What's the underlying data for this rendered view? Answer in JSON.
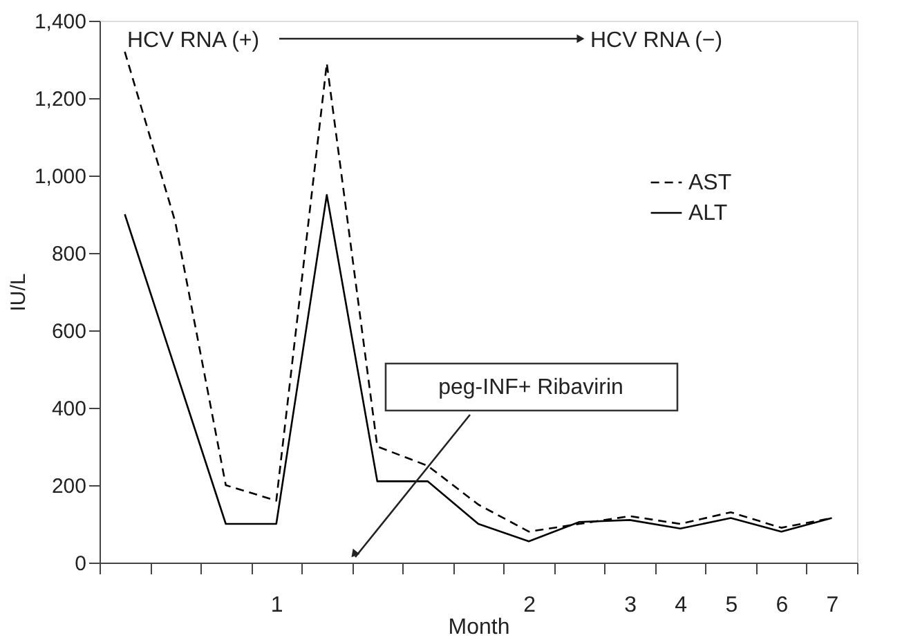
{
  "chart_data": {
    "type": "line",
    "xlabel": "Month",
    "ylabel": "IU/L",
    "categories": [
      null,
      null,
      null,
      "1",
      null,
      null,
      null,
      null,
      "2",
      null,
      "3",
      "4",
      "5",
      "6",
      "7"
    ],
    "ylim": [
      0,
      1400
    ],
    "yticks": [
      0,
      200,
      400,
      600,
      800,
      {
        "value": 1000,
        "label": "1,000"
      },
      {
        "value": 1200,
        "label": "1,200"
      },
      {
        "value": 1400,
        "label": "1,400"
      }
    ],
    "series": [
      {
        "name": "AST",
        "color": "#000000",
        "line_style": "dashed",
        "values": [
          1320,
          880,
          200,
          160,
          1290,
          300,
          250,
          150,
          80,
          100,
          120,
          100,
          130,
          90,
          115
        ]
      },
      {
        "name": "ALT",
        "color": "#000000",
        "line_style": "solid",
        "values": [
          900,
          500,
          100,
          100,
          950,
          210,
          210,
          100,
          55,
          105,
          110,
          88,
          115,
          80,
          115
        ]
      }
    ],
    "legend": "top right",
    "grid": false,
    "marker": "none",
    "annotations": [
      "HCV RNA (+)",
      "HCV RNA (−)",
      "peg-INF+ Ribavirin"
    ]
  }
}
